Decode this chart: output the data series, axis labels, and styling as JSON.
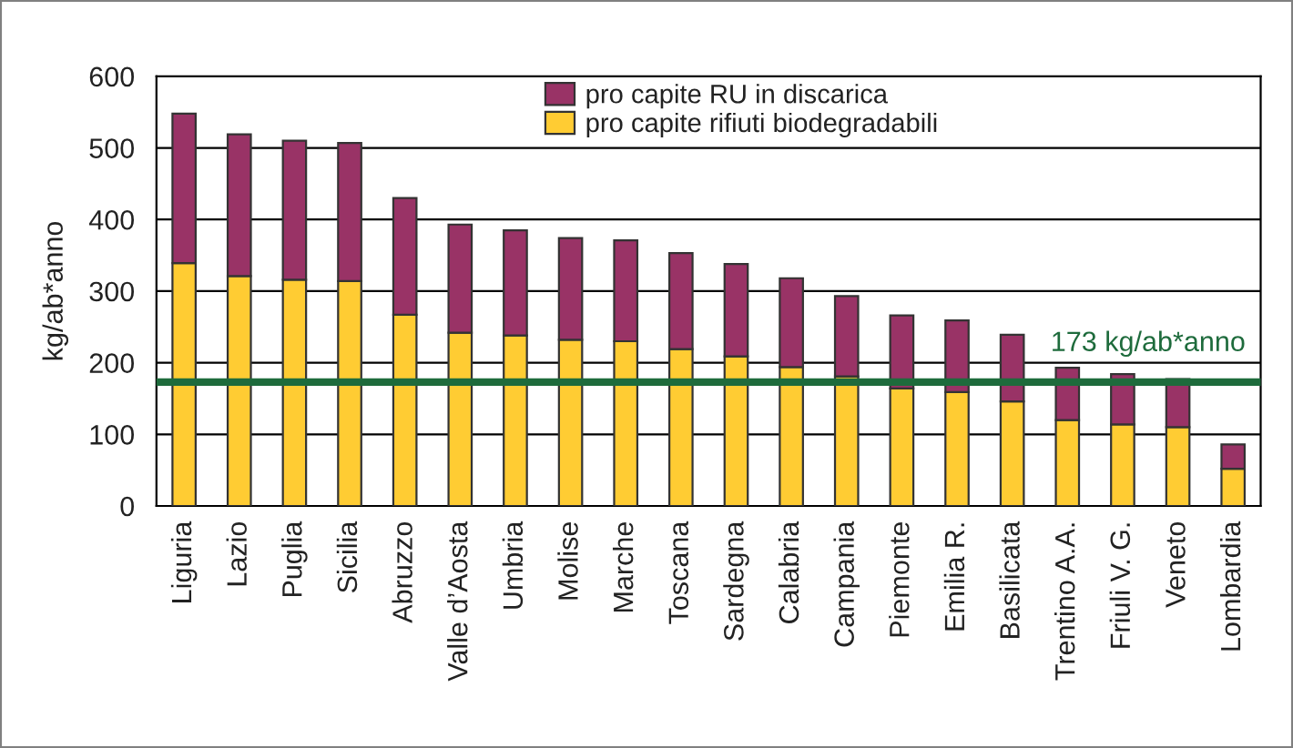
{
  "chart_data": {
    "type": "bar",
    "stacked": true,
    "ylabel": "kg/ab*anno",
    "categories": [
      "Liguria",
      "Lazio",
      "Puglia",
      "Sicilia",
      "Abruzzo",
      "Valle d’Aosta",
      "Umbria",
      "Molise",
      "Marche",
      "Toscana",
      "Sardegna",
      "Calabria",
      "Campania",
      "Piemonte",
      "Emilia R.",
      "Basilicata",
      "Trentino A.A.",
      "Friuli V. G.",
      "Veneto",
      "Lombardia"
    ],
    "series": [
      {
        "name": "pro capite rifiuti biodegradabili",
        "color": "#ffcc33",
        "values": [
          339,
          321,
          316,
          314,
          267,
          242,
          238,
          232,
          230,
          219,
          209,
          194,
          181,
          164,
          159,
          146,
          120,
          114,
          110,
          52
        ]
      },
      {
        "name": "pro capite RU in discarica",
        "color": "#993366",
        "values": [
          209,
          198,
          194,
          193,
          163,
          151,
          147,
          142,
          141,
          134,
          129,
          124,
          112,
          102,
          100,
          93,
          73,
          70,
          67,
          34
        ]
      }
    ],
    "ylim": [
      0,
      600
    ],
    "yticks": [
      0,
      100,
      200,
      300,
      400,
      500,
      600
    ],
    "grid": "y",
    "legend": "top",
    "ref_lines": [
      {
        "axis": "y",
        "value": 173,
        "label": "173 kg/ab*anno",
        "color": "#1e6b3c"
      }
    ]
  }
}
